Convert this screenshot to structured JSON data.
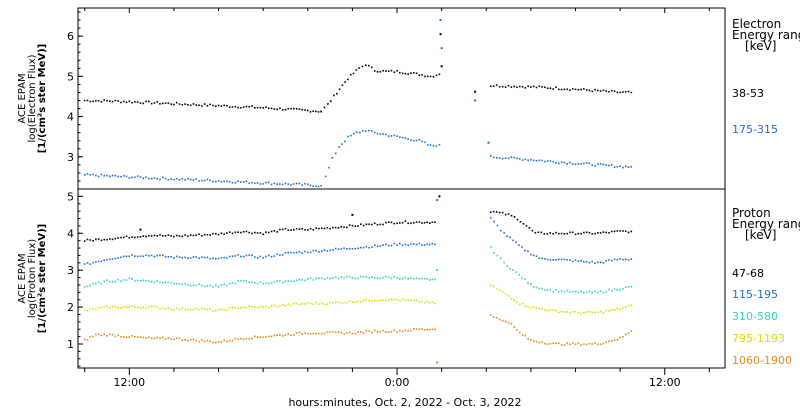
{
  "chart_data": [
    {
      "type": "scatter",
      "panel": "electron",
      "ylabel_lines": [
        "ACE EPAM",
        "log(Electron Flux)",
        "[1/(cm²s ster MeV)]"
      ],
      "legend_title": [
        "Electron",
        "Energy range",
        "[keV]"
      ],
      "ylim": [
        2.2,
        6.7
      ],
      "yticks": [
        3,
        4,
        5,
        6
      ],
      "series": [
        {
          "name": "38-53",
          "color": "#000000",
          "segments": [
            [
              [
                10.0,
                4.4
              ],
              [
                11.0,
                4.39
              ],
              [
                12.0,
                4.37
              ],
              [
                14.0,
                4.32
              ],
              [
                16.0,
                4.27
              ],
              [
                18.0,
                4.22
              ],
              [
                20.0,
                4.15
              ],
              [
                20.6,
                4.13
              ]
            ],
            [
              [
                20.6,
                4.13
              ],
              [
                20.9,
                4.3
              ],
              [
                21.3,
                4.6
              ],
              [
                21.8,
                4.95
              ],
              [
                22.3,
                5.2
              ],
              [
                22.6,
                5.3
              ],
              [
                23.0,
                5.15
              ],
              [
                23.5,
                5.12
              ],
              [
                24.0,
                5.12
              ],
              [
                25.0,
                5.05
              ],
              [
                25.5,
                5.0
              ],
              [
                25.9,
                5.05
              ]
            ],
            [
              [
                28.2,
                4.77
              ],
              [
                29.0,
                4.76
              ],
              [
                30.0,
                4.74
              ],
              [
                31.0,
                4.71
              ],
              [
                32.0,
                4.68
              ],
              [
                33.0,
                4.64
              ],
              [
                34.0,
                4.6
              ],
              [
                34.5,
                4.6
              ]
            ]
          ],
          "points": [
            [
              25.95,
              6.05
            ],
            [
              26.0,
              5.25
            ],
            [
              27.5,
              4.62
            ]
          ]
        },
        {
          "name": "175-315",
          "color": "#1f6fcf",
          "segments": [
            [
              [
                10.0,
                2.55
              ],
              [
                12.0,
                2.5
              ],
              [
                14.0,
                2.45
              ],
              [
                16.0,
                2.4
              ],
              [
                18.0,
                2.35
              ],
              [
                20.0,
                2.3
              ],
              [
                20.6,
                2.28
              ]
            ],
            [
              [
                20.8,
                2.5
              ],
              [
                21.1,
                2.95
              ],
              [
                21.4,
                3.25
              ],
              [
                21.8,
                3.48
              ],
              [
                22.2,
                3.6
              ],
              [
                22.6,
                3.66
              ],
              [
                23.0,
                3.6
              ],
              [
                23.5,
                3.55
              ],
              [
                24.0,
                3.5
              ],
              [
                25.0,
                3.4
              ],
              [
                25.5,
                3.27
              ],
              [
                25.9,
                3.3
              ]
            ],
            [
              [
                28.2,
                3.0
              ],
              [
                29.0,
                2.97
              ],
              [
                30.0,
                2.93
              ],
              [
                31.0,
                2.88
              ],
              [
                32.0,
                2.84
              ],
              [
                33.0,
                2.8
              ],
              [
                34.0,
                2.76
              ],
              [
                34.5,
                2.75
              ]
            ]
          ],
          "points": [
            [
              25.95,
              6.4
            ],
            [
              26.0,
              5.7
            ],
            [
              27.5,
              4.4
            ],
            [
              28.1,
              3.35
            ]
          ]
        }
      ]
    },
    {
      "type": "scatter",
      "panel": "proton",
      "ylabel_lines": [
        "ACE EPAM",
        "log(Proton Flux)",
        "[1/(cm²s ster MeV)]"
      ],
      "legend_title": [
        "Proton",
        "Energy range",
        "[keV]"
      ],
      "ylim": [
        0.35,
        5.2
      ],
      "yticks": [
        1,
        2,
        3,
        4,
        5
      ],
      "series": [
        {
          "name": "47-68",
          "color": "#000000",
          "segments": [
            [
              [
                10.0,
                3.8
              ],
              [
                11.0,
                3.85
              ],
              [
                12.0,
                3.9
              ],
              [
                13.0,
                3.95
              ],
              [
                14.0,
                3.92
              ],
              [
                15.0,
                3.95
              ],
              [
                16.0,
                3.98
              ],
              [
                17.0,
                4.05
              ],
              [
                18.0,
                4.0
              ],
              [
                19.0,
                4.1
              ],
              [
                20.0,
                4.1
              ],
              [
                21.0,
                4.15
              ],
              [
                22.0,
                4.2
              ],
              [
                23.0,
                4.25
              ],
              [
                24.0,
                4.3
              ],
              [
                25.0,
                4.3
              ],
              [
                25.7,
                4.3
              ]
            ],
            [
              [
                28.2,
                4.6
              ],
              [
                28.6,
                4.55
              ],
              [
                29.0,
                4.5
              ],
              [
                29.4,
                4.4
              ],
              [
                29.8,
                4.2
              ],
              [
                30.2,
                4.0
              ],
              [
                31.0,
                4.0
              ],
              [
                32.0,
                4.0
              ],
              [
                33.0,
                4.0
              ],
              [
                34.0,
                4.05
              ],
              [
                34.5,
                4.05
              ]
            ]
          ],
          "points": [
            [
              25.9,
              5.0
            ],
            [
              12.5,
              4.1
            ],
            [
              22.0,
              4.5
            ]
          ]
        },
        {
          "name": "115-195",
          "color": "#1f6fcf",
          "segments": [
            [
              [
                10.0,
                3.15
              ],
              [
                11.0,
                3.3
              ],
              [
                12.0,
                3.4
              ],
              [
                13.0,
                3.4
              ],
              [
                14.0,
                3.35
              ],
              [
                15.0,
                3.35
              ],
              [
                16.0,
                3.3
              ],
              [
                17.0,
                3.4
              ],
              [
                18.0,
                3.35
              ],
              [
                19.0,
                3.45
              ],
              [
                20.0,
                3.5
              ],
              [
                21.0,
                3.55
              ],
              [
                22.0,
                3.6
              ],
              [
                23.0,
                3.65
              ],
              [
                24.0,
                3.7
              ],
              [
                25.0,
                3.7
              ],
              [
                25.7,
                3.7
              ]
            ],
            [
              [
                28.2,
                4.4
              ],
              [
                28.5,
                4.2
              ],
              [
                28.8,
                4.0
              ],
              [
                29.2,
                3.8
              ],
              [
                29.6,
                3.6
              ],
              [
                30.0,
                3.45
              ],
              [
                30.5,
                3.3
              ],
              [
                31.0,
                3.3
              ],
              [
                32.0,
                3.25
              ],
              [
                33.0,
                3.2
              ],
              [
                34.0,
                3.3
              ],
              [
                34.5,
                3.3
              ]
            ]
          ],
          "points": [
            [
              25.8,
              4.9
            ]
          ]
        },
        {
          "name": "310-580",
          "color": "#33d0d0",
          "segments": [
            [
              [
                10.0,
                2.55
              ],
              [
                11.0,
                2.7
              ],
              [
                12.0,
                2.75
              ],
              [
                13.0,
                2.7
              ],
              [
                14.0,
                2.65
              ],
              [
                15.0,
                2.6
              ],
              [
                16.0,
                2.55
              ],
              [
                17.0,
                2.7
              ],
              [
                18.0,
                2.65
              ],
              [
                19.0,
                2.7
              ],
              [
                20.0,
                2.75
              ],
              [
                21.0,
                2.8
              ],
              [
                22.0,
                2.8
              ],
              [
                23.0,
                2.8
              ],
              [
                24.0,
                2.8
              ],
              [
                25.0,
                2.75
              ],
              [
                25.7,
                2.75
              ]
            ],
            [
              [
                28.2,
                3.6
              ],
              [
                28.5,
                3.4
              ],
              [
                28.8,
                3.2
              ],
              [
                29.2,
                3.0
              ],
              [
                29.6,
                2.8
              ],
              [
                30.0,
                2.6
              ],
              [
                30.5,
                2.5
              ],
              [
                31.0,
                2.45
              ],
              [
                32.0,
                2.4
              ],
              [
                33.0,
                2.4
              ],
              [
                34.0,
                2.5
              ],
              [
                34.5,
                2.55
              ]
            ]
          ],
          "points": [
            [
              25.8,
              3.0
            ]
          ]
        },
        {
          "name": "795-1193",
          "color": "#d4e000",
          "segments": [
            [
              [
                10.0,
                1.9
              ],
              [
                11.0,
                2.0
              ],
              [
                12.0,
                2.0
              ],
              [
                13.0,
                2.0
              ],
              [
                14.0,
                1.95
              ],
              [
                15.0,
                1.95
              ],
              [
                16.0,
                1.9
              ],
              [
                17.0,
                2.0
              ],
              [
                18.0,
                2.0
              ],
              [
                19.0,
                2.05
              ],
              [
                20.0,
                2.1
              ],
              [
                21.0,
                2.1
              ],
              [
                22.0,
                2.15
              ],
              [
                23.0,
                2.2
              ],
              [
                24.0,
                2.2
              ],
              [
                25.0,
                2.15
              ],
              [
                25.7,
                2.1
              ]
            ],
            [
              [
                28.2,
                2.6
              ],
              [
                28.6,
                2.45
              ],
              [
                29.0,
                2.3
              ],
              [
                29.5,
                2.1
              ],
              [
                30.0,
                2.0
              ],
              [
                31.0,
                1.9
              ],
              [
                32.0,
                1.85
              ],
              [
                33.0,
                1.85
              ],
              [
                34.0,
                1.95
              ],
              [
                34.5,
                2.05
              ]
            ]
          ],
          "points": []
        },
        {
          "name": "1060-1900",
          "color": "#e8881a",
          "segments": [
            [
              [
                10.0,
                1.1
              ],
              [
                10.5,
                1.25
              ],
              [
                11.0,
                1.25
              ],
              [
                12.0,
                1.2
              ],
              [
                13.0,
                1.15
              ],
              [
                14.0,
                1.15
              ],
              [
                15.0,
                1.1
              ],
              [
                16.0,
                1.05
              ],
              [
                17.0,
                1.15
              ],
              [
                18.0,
                1.2
              ],
              [
                19.0,
                1.25
              ],
              [
                20.0,
                1.3
              ],
              [
                21.0,
                1.3
              ],
              [
                22.0,
                1.3
              ],
              [
                23.0,
                1.35
              ],
              [
                24.0,
                1.35
              ],
              [
                25.0,
                1.4
              ],
              [
                25.7,
                1.4
              ]
            ],
            [
              [
                28.2,
                1.8
              ],
              [
                28.6,
                1.65
              ],
              [
                29.0,
                1.6
              ],
              [
                29.5,
                1.3
              ],
              [
                30.0,
                1.1
              ],
              [
                31.0,
                1.0
              ],
              [
                32.0,
                1.0
              ],
              [
                33.0,
                1.0
              ],
              [
                34.0,
                1.15
              ],
              [
                34.5,
                1.35
              ]
            ]
          ],
          "points": [
            [
              25.8,
              0.5
            ]
          ]
        }
      ]
    }
  ],
  "x_axis": {
    "xlim": [
      9.7,
      38.7
    ],
    "major_ticks": [
      12,
      24,
      36
    ],
    "major_labels": [
      "12:00",
      "0:00",
      "12:00"
    ],
    "minor_ticks": [
      10,
      14,
      16,
      18,
      20,
      22,
      26,
      28,
      30,
      32,
      34,
      38
    ],
    "xlabel": "hours:minutes, Oct.  2, 2022 - Oct.  3, 2022"
  }
}
